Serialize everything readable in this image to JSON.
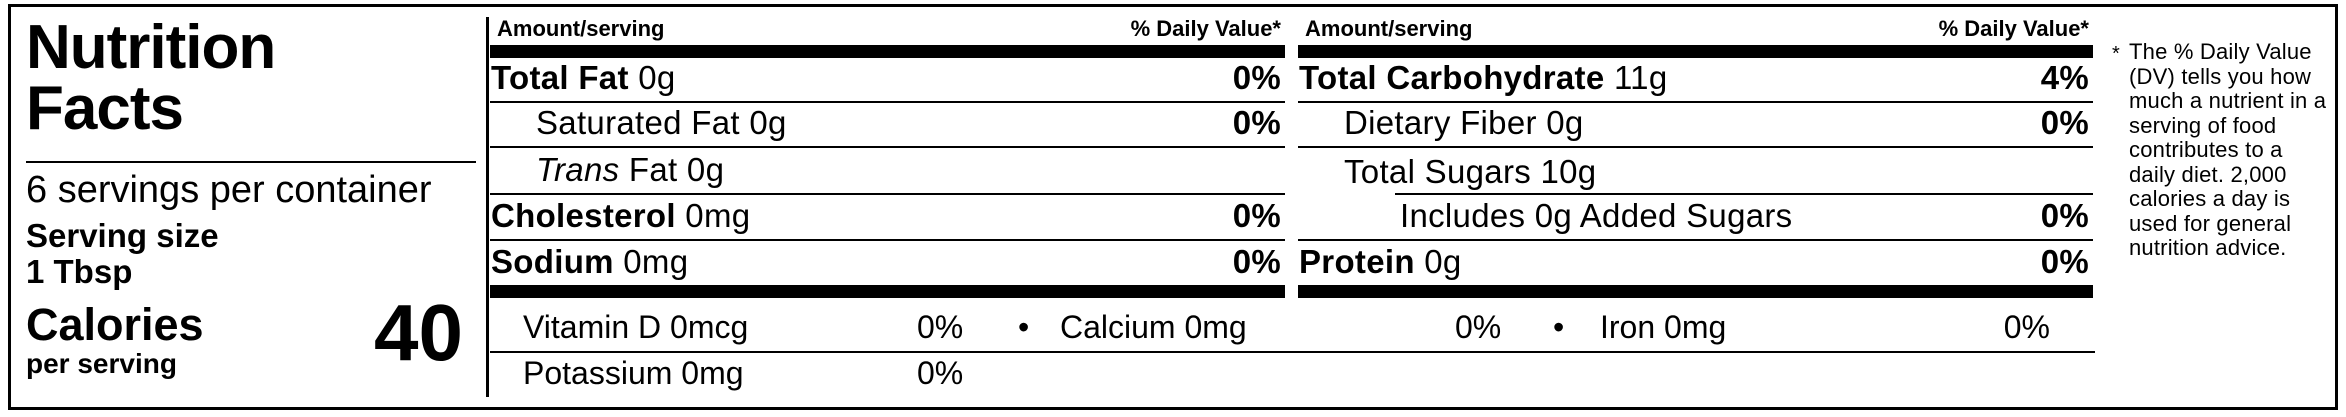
{
  "left_panel": {
    "title_line1": "Nutrition",
    "title_line2": "Facts",
    "servings_per_container": "6 servings per container",
    "serving_size_label": "Serving size",
    "serving_size_value": "1 Tbsp",
    "calories_label": "Calories",
    "calories_sublabel": "per serving",
    "calories_value": "40"
  },
  "columns": [
    {
      "header_left": "Amount/serving",
      "header_right": "% Daily Value*",
      "rows": [
        {
          "bold": "Total Fat",
          "rest": " 0g",
          "dv": "0%"
        },
        {
          "rest": "Saturated Fat 0g",
          "dv": "0%"
        },
        {
          "italic": "Trans",
          "rest": " Fat 0g",
          "dv": ""
        },
        {
          "bold": "Cholesterol",
          "rest": " 0mg",
          "dv": "0%"
        },
        {
          "bold": "Sodium",
          "rest": " 0mg",
          "dv": "0%"
        }
      ]
    },
    {
      "header_left": "Amount/serving",
      "header_right": "% Daily Value*",
      "rows": [
        {
          "bold": "Total Carbohydrate",
          "rest": " 11g",
          "dv": "4%"
        },
        {
          "rest": "Dietary Fiber 0g",
          "dv": "0%"
        },
        {
          "rest": "Total Sugars 10g",
          "dv": ""
        },
        {
          "rest": "Includes 0g Added Sugars",
          "dv": "0%"
        },
        {
          "bold": "Protein",
          "rest": " 0g",
          "dv": "0%"
        }
      ]
    }
  ],
  "micronutrients": {
    "separator": "•",
    "line1": [
      {
        "name": "Vitamin D 0mcg",
        "dv": "0%"
      },
      {
        "name": "Calcium 0mg",
        "dv": "0%"
      },
      {
        "name": "Iron 0mg",
        "dv": "0%"
      }
    ],
    "line2": [
      {
        "name": "Potassium 0mg",
        "dv": "0%"
      }
    ]
  },
  "footnote": {
    "marker": "*",
    "text": "The % Daily Value (DV) tells you how much a nutrient in a serving of food contributes to a daily diet. 2,000 calories a day is used for general nutrition advice."
  },
  "colors": {
    "ink": "#000000",
    "paper": "#ffffff"
  }
}
